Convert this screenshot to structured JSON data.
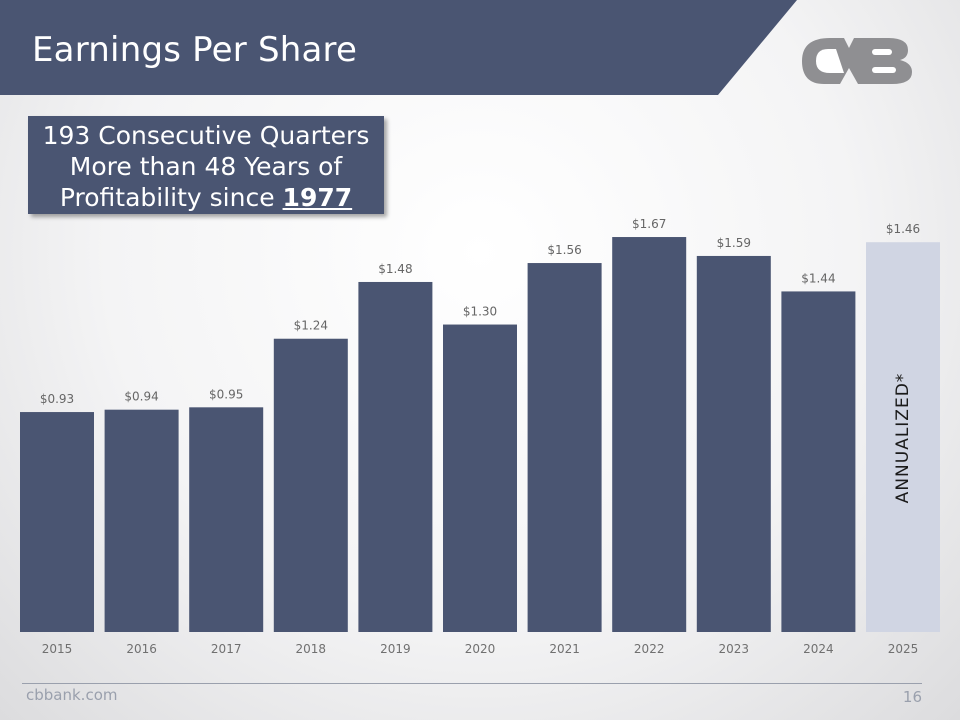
{
  "slide": {
    "title": "Earnings Per Share",
    "logo": "cvb-logo",
    "callout": {
      "line1": "193 Consecutive Quarters",
      "line2": "More than 48 Years of",
      "line3_prefix": "Profitability since",
      "line3_year": "1977"
    },
    "footer": {
      "website": "cbbank.com",
      "page_number": "16"
    },
    "colors": {
      "header": "#4a5572",
      "bar": "#4a5572",
      "annualized_bar": "#d0d5e3",
      "value_label": "#666666",
      "axis_label": "#707070",
      "footer": "#9aa0ad"
    }
  },
  "chart_data": {
    "type": "bar",
    "title": "",
    "xlabel": "",
    "ylabel": "",
    "ylim": [
      0,
      1.89
    ],
    "grid": false,
    "categories": [
      "2015",
      "2016",
      "2017",
      "2018",
      "2019",
      "2020",
      "2021",
      "2022",
      "2023",
      "2024",
      "2025"
    ],
    "values": [
      0.93,
      0.94,
      0.95,
      1.24,
      1.48,
      1.3,
      1.56,
      1.67,
      1.59,
      1.44,
      1.46
    ],
    "value_labels": [
      "$0.93",
      "$0.94",
      "$0.95",
      "$1.24",
      "$1.48",
      "$1.30",
      "$1.56",
      "$1.67",
      "$1.59",
      "$1.44",
      "$1.46"
    ],
    "annualized_index": 10,
    "annualized_label": "ANNUALIZED*"
  }
}
